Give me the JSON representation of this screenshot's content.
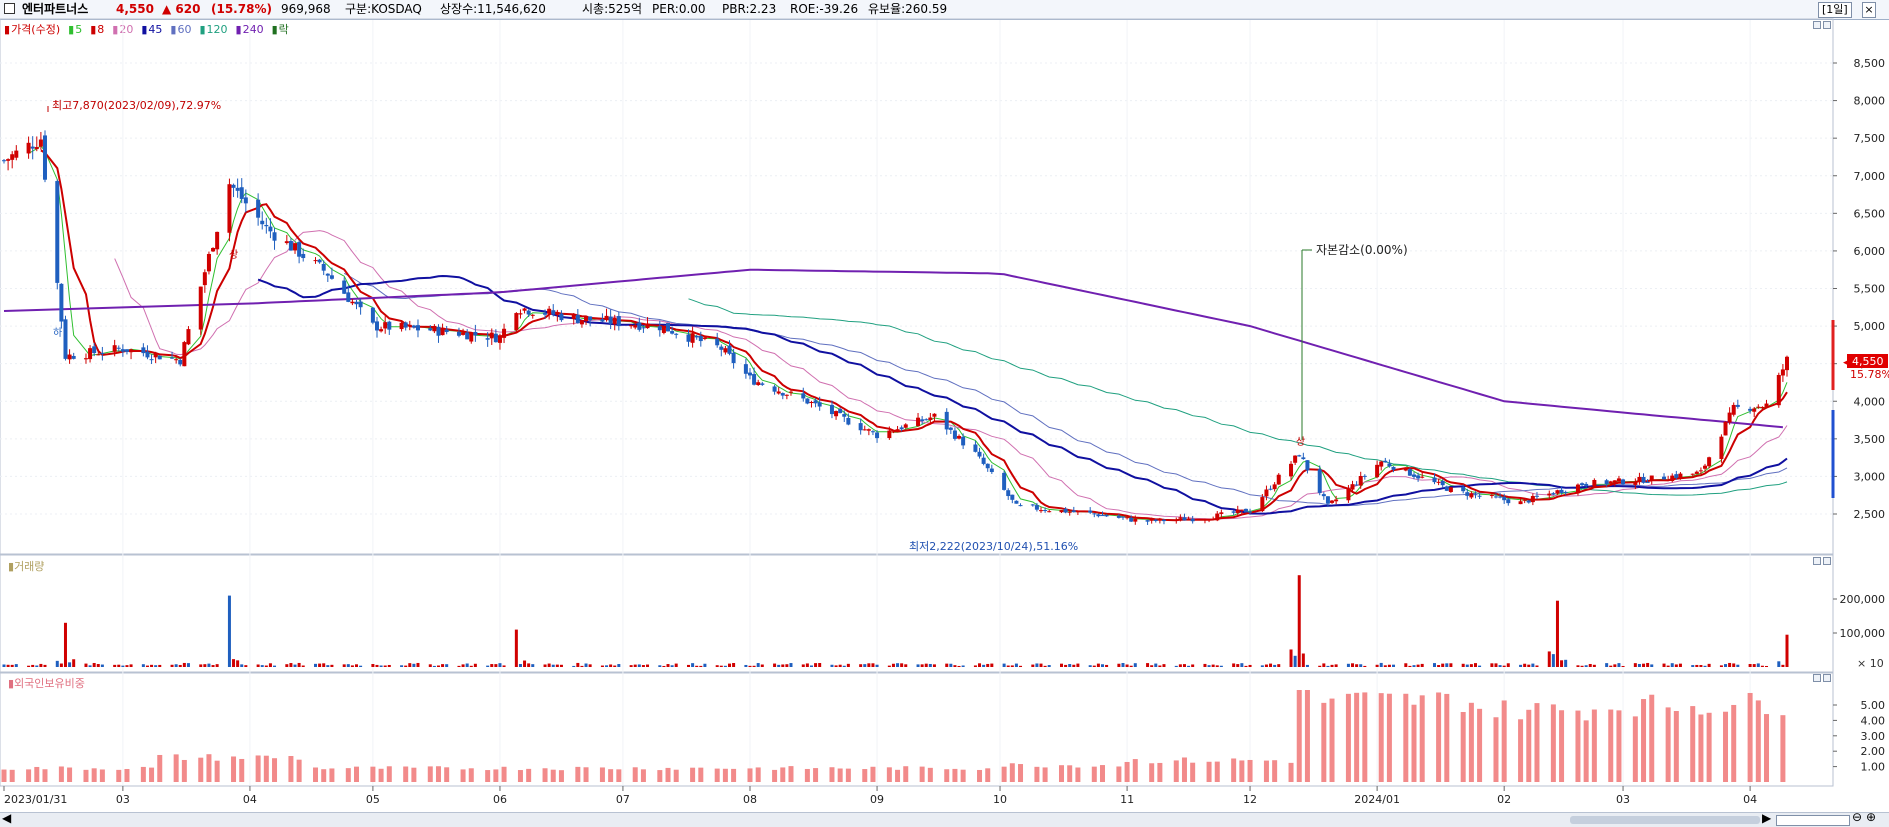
{
  "header": {
    "stock_name": "엔터파트너스",
    "price": "4,550",
    "change": "▲ 620",
    "change_pct": "(15.78%)",
    "volume": "969,968",
    "market": "구분:KOSDAQ",
    "shares": "상장수:11,546,620",
    "mktcap": "시총:525억",
    "per": "PER:0.00",
    "pbr": "PBR:2.23",
    "roe": "ROE:-39.26",
    "retention": "유보율:260.59",
    "period_button": "[1일]",
    "up_color": "#d00000",
    "down_color": "#1f5fbf"
  },
  "legend": [
    {
      "label": "가격(수정)",
      "color": "#cc0000"
    },
    {
      "label": "5",
      "color": "#2fbf2f"
    },
    {
      "label": "8",
      "color": "#cc0000"
    },
    {
      "label": "20",
      "color": "#d070b0"
    },
    {
      "label": "45",
      "color": "#1010a0"
    },
    {
      "label": "60",
      "color": "#6070c0"
    },
    {
      "label": "120",
      "color": "#20a080"
    },
    {
      "label": "240",
      "color": "#7020b0"
    },
    {
      "label": "락",
      "color": "#207020"
    }
  ],
  "panels": {
    "volume_label": "거래량",
    "foreign_label": "외국인보유비중",
    "volume_unit": "× 10"
  },
  "annotations": {
    "high": "최고7,870(2023/02/09),72.97%",
    "low": "최저2,222(2023/10/24),51.16%",
    "capital_reduction": "자본감소(0.00%)",
    "up_marker": "상",
    "down_marker": "하"
  },
  "current": {
    "price_tag": "4,550",
    "pct_tag": "15.78%"
  },
  "chart_data": [
    {
      "type": "candlestick",
      "title": "",
      "y_ticks": [
        "2,500",
        "3,000",
        "3,500",
        "4,000",
        "4,500",
        "5,000",
        "5,500",
        "6,000",
        "6,500",
        "7,000",
        "7,500",
        "8,000",
        "8,500"
      ],
      "ylim": [
        2000,
        9000
      ],
      "x_ticks": [
        "2023/01/31",
        "03",
        "04",
        "05",
        "06",
        "07",
        "08",
        "09",
        "10",
        "11",
        "12",
        "2024/01",
        "02",
        "03",
        "04"
      ],
      "close_series_approx": [
        {
          "date": "2023-01-31",
          "close": 7200
        },
        {
          "date": "2023-02-09",
          "close": 7500
        },
        {
          "date": "2023-02-15",
          "close": 4600
        },
        {
          "date": "2023-03-01",
          "close": 4700
        },
        {
          "date": "2023-03-15",
          "close": 4550
        },
        {
          "date": "2023-03-27",
          "close": 6900
        },
        {
          "date": "2023-04-05",
          "close": 6300
        },
        {
          "date": "2023-04-20",
          "close": 5700
        },
        {
          "date": "2023-05-01",
          "close": 5000
        },
        {
          "date": "2023-05-15",
          "close": 4950
        },
        {
          "date": "2023-06-01",
          "close": 4850
        },
        {
          "date": "2023-06-05",
          "close": 5250
        },
        {
          "date": "2023-06-20",
          "close": 5100
        },
        {
          "date": "2023-07-10",
          "close": 5000
        },
        {
          "date": "2023-07-25",
          "close": 4700
        },
        {
          "date": "2023-08-01",
          "close": 4300
        },
        {
          "date": "2023-08-15",
          "close": 4000
        },
        {
          "date": "2023-09-01",
          "close": 3550
        },
        {
          "date": "2023-09-15",
          "close": 3800
        },
        {
          "date": "2023-09-25",
          "close": 3300
        },
        {
          "date": "2023-10-05",
          "close": 2600
        },
        {
          "date": "2023-10-24",
          "close": 2500
        },
        {
          "date": "2023-11-05",
          "close": 2400
        },
        {
          "date": "2023-11-20",
          "close": 2450
        },
        {
          "date": "2023-12-01",
          "close": 2550
        },
        {
          "date": "2023-12-13",
          "close": 3300
        },
        {
          "date": "2023-12-20",
          "close": 2600
        },
        {
          "date": "2024-01-02",
          "close": 3200
        },
        {
          "date": "2024-01-20",
          "close": 2800
        },
        {
          "date": "2024-02-05",
          "close": 2650
        },
        {
          "date": "2024-02-20",
          "close": 2900
        },
        {
          "date": "2024-03-05",
          "close": 2950
        },
        {
          "date": "2024-03-20",
          "close": 3050
        },
        {
          "date": "2024-03-28",
          "close": 3900
        },
        {
          "date": "2024-04-05",
          "close": 3950
        },
        {
          "date": "2024-04-10",
          "close": 4550
        }
      ],
      "ma240_approx": [
        {
          "date": "2023-01-31",
          "value": 5200
        },
        {
          "date": "2023-04-01",
          "value": 5300
        },
        {
          "date": "2023-06-01",
          "value": 5450
        },
        {
          "date": "2023-08-01",
          "value": 5750
        },
        {
          "date": "2023-10-01",
          "value": 5700
        },
        {
          "date": "2023-12-01",
          "value": 5000
        },
        {
          "date": "2024-01-01",
          "value": 4500
        },
        {
          "date": "2024-02-01",
          "value": 4000
        },
        {
          "date": "2024-03-01",
          "value": 3850
        },
        {
          "date": "2024-04-10",
          "value": 3650
        }
      ]
    },
    {
      "type": "bar",
      "title": "",
      "y_ticks": [
        "200,000",
        "100,000"
      ],
      "unit": "× 10",
      "spikes": [
        {
          "date": "2023-02-15",
          "value": 130000
        },
        {
          "date": "2023-03-27",
          "value": 210000
        },
        {
          "date": "2023-06-05",
          "value": 110000
        },
        {
          "date": "2023-12-13",
          "value": 270000
        },
        {
          "date": "2024-02-14",
          "value": 195000
        },
        {
          "date": "2024-04-10",
          "value": 95000
        }
      ]
    },
    {
      "type": "bar",
      "title": "",
      "y_ticks": [
        "5.00",
        "4.00",
        "3.00",
        "2.00",
        "1.00"
      ],
      "levels": [
        {
          "period": "2023-02 ~ 2023-09",
          "value": 1.0
        },
        {
          "period": "2023-03",
          "value": 2.0
        },
        {
          "period": "2023-10 ~ 2023-12",
          "value": 1.4
        },
        {
          "period": "2023-12-14",
          "value": 6.0
        },
        {
          "period": "2024-01",
          "value": 5.3
        },
        {
          "period": "2024-02",
          "value": 4.7
        },
        {
          "period": "2024-04",
          "value": 5.1
        }
      ]
    }
  ]
}
